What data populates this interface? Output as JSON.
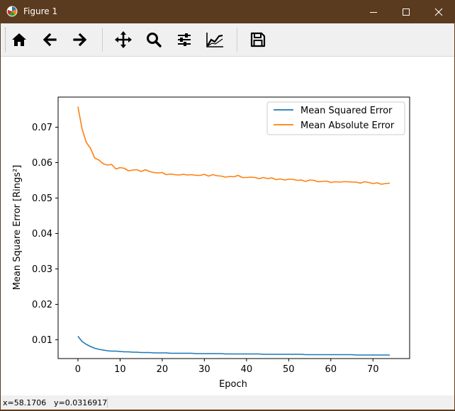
{
  "window": {
    "title": "Figure 1",
    "titlebar_color": "#5b3b1f",
    "controls": [
      "minimize-icon",
      "maximize-icon",
      "close-icon"
    ]
  },
  "toolbar": {
    "buttons": [
      {
        "name": "home",
        "icon": "home-icon"
      },
      {
        "name": "back",
        "icon": "arrow-left-icon"
      },
      {
        "name": "forward",
        "icon": "arrow-right-icon"
      },
      {
        "name": "pan",
        "icon": "move-icon"
      },
      {
        "name": "zoom",
        "icon": "magnifier-icon"
      },
      {
        "name": "configure-subplots",
        "icon": "sliders-icon"
      },
      {
        "name": "edit-axis",
        "icon": "line-chart-icon"
      },
      {
        "name": "save",
        "icon": "floppy-disk-icon"
      }
    ]
  },
  "status": {
    "x_text": "x=58.1706",
    "y_text": "y=0.0316917"
  },
  "chart_data": {
    "type": "line",
    "title": "",
    "xlabel": "Epoch",
    "ylabel": "Mean Square Error [Rings²]",
    "xlim": [
      -4.7,
      78.7
    ],
    "ylim": [
      0.0047,
      0.0785
    ],
    "xticks": [
      0,
      10,
      20,
      30,
      40,
      50,
      60,
      70
    ],
    "yticks": [
      0.01,
      0.02,
      0.03,
      0.04,
      0.05,
      0.06,
      0.07
    ],
    "ytick_labels": [
      "0.01",
      "0.02",
      "0.03",
      "0.04",
      "0.05",
      "0.06",
      "0.07"
    ],
    "grid": false,
    "legend_position": "upper right",
    "series": [
      {
        "name": "Mean Squared Error",
        "color": "#1f77b4",
        "x": [
          0,
          1,
          2,
          3,
          4,
          5,
          6,
          7,
          8,
          9,
          10,
          11,
          12,
          13,
          14,
          15,
          16,
          17,
          18,
          19,
          20,
          21,
          22,
          23,
          24,
          25,
          26,
          27,
          28,
          29,
          30,
          31,
          32,
          33,
          34,
          35,
          36,
          37,
          38,
          39,
          40,
          41,
          42,
          43,
          44,
          45,
          46,
          47,
          48,
          49,
          50,
          51,
          52,
          53,
          54,
          55,
          56,
          57,
          58,
          59,
          60,
          61,
          62,
          63,
          64,
          65,
          66,
          67,
          68,
          69,
          70,
          71,
          72,
          73,
          74
        ],
        "y": [
          0.011,
          0.0095,
          0.0087,
          0.0081,
          0.0076,
          0.0073,
          0.0071,
          0.0069,
          0.0068,
          0.0068,
          0.0067,
          0.0066,
          0.0066,
          0.0065,
          0.0065,
          0.0064,
          0.0064,
          0.0064,
          0.0063,
          0.0063,
          0.0063,
          0.0063,
          0.0062,
          0.0062,
          0.0062,
          0.0062,
          0.0062,
          0.0062,
          0.0061,
          0.0061,
          0.0061,
          0.0061,
          0.0061,
          0.0061,
          0.0061,
          0.006,
          0.006,
          0.006,
          0.006,
          0.006,
          0.006,
          0.006,
          0.006,
          0.006,
          0.0059,
          0.0059,
          0.0059,
          0.0059,
          0.0059,
          0.0059,
          0.0059,
          0.0059,
          0.0059,
          0.0059,
          0.0058,
          0.0058,
          0.0058,
          0.0058,
          0.0058,
          0.0058,
          0.0058,
          0.0058,
          0.0058,
          0.0058,
          0.0058,
          0.0058,
          0.0057,
          0.0057,
          0.0057,
          0.0057,
          0.0057,
          0.0057,
          0.0057,
          0.0057,
          0.0057
        ]
      },
      {
        "name": "Mean Absolute Error",
        "color": "#ff7f0e",
        "x": [
          0,
          1,
          2,
          3,
          4,
          5,
          6,
          7,
          8,
          9,
          10,
          11,
          12,
          13,
          14,
          15,
          16,
          17,
          18,
          19,
          20,
          21,
          22,
          23,
          24,
          25,
          26,
          27,
          28,
          29,
          30,
          31,
          32,
          33,
          34,
          35,
          36,
          37,
          38,
          39,
          40,
          41,
          42,
          43,
          44,
          45,
          46,
          47,
          48,
          49,
          50,
          51,
          52,
          53,
          54,
          55,
          56,
          57,
          58,
          59,
          60,
          61,
          62,
          63,
          64,
          65,
          66,
          67,
          68,
          69,
          70,
          71,
          72,
          73,
          74
        ],
        "y": [
          0.0758,
          0.0694,
          0.0657,
          0.064,
          0.0613,
          0.0607,
          0.0597,
          0.0593,
          0.0595,
          0.0582,
          0.0586,
          0.0584,
          0.0577,
          0.0579,
          0.058,
          0.0575,
          0.058,
          0.0575,
          0.0572,
          0.0571,
          0.0572,
          0.0566,
          0.0568,
          0.0566,
          0.0565,
          0.0567,
          0.0565,
          0.0566,
          0.0564,
          0.0564,
          0.0567,
          0.0562,
          0.0566,
          0.0563,
          0.0562,
          0.0559,
          0.0561,
          0.056,
          0.0564,
          0.0558,
          0.0558,
          0.0559,
          0.0558,
          0.0555,
          0.0558,
          0.0555,
          0.0557,
          0.0552,
          0.0554,
          0.0551,
          0.0553,
          0.0553,
          0.055,
          0.0551,
          0.0547,
          0.0551,
          0.055,
          0.0546,
          0.0547,
          0.0548,
          0.0544,
          0.0546,
          0.0545,
          0.0546,
          0.0546,
          0.0545,
          0.0545,
          0.0542,
          0.0546,
          0.0544,
          0.0541,
          0.0543,
          0.0539,
          0.0541,
          0.0542
        ]
      }
    ]
  }
}
